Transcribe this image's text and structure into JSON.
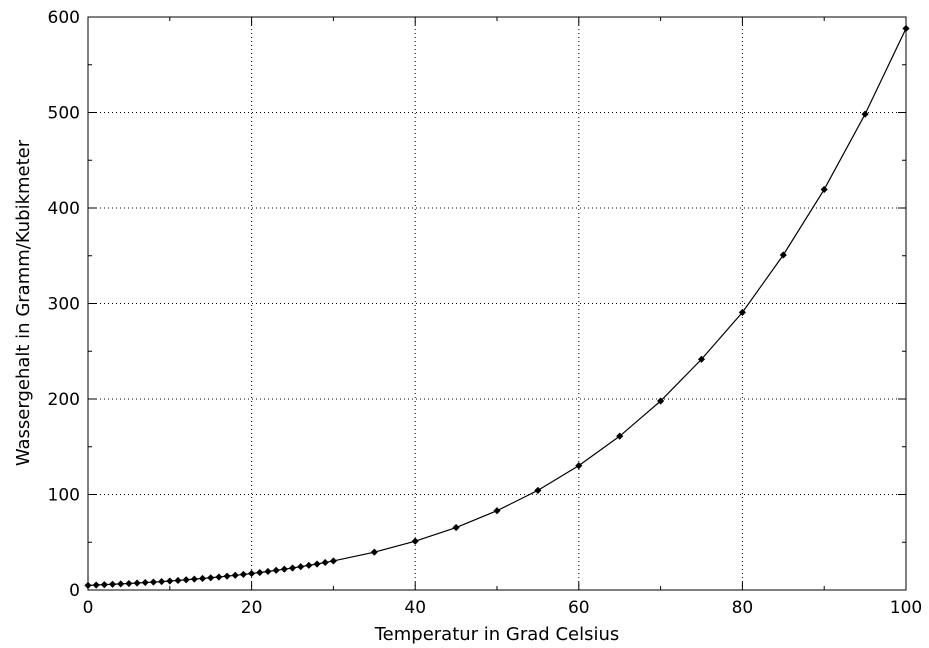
{
  "chart_data": {
    "type": "line",
    "title": "",
    "xlabel": "Temperatur in Grad Celsius",
    "ylabel": "Wassergehalt in Gramm/Kubikmeter",
    "xlim": [
      0,
      100
    ],
    "ylim": [
      0,
      600
    ],
    "xticks": [
      0,
      20,
      40,
      60,
      80,
      100
    ],
    "yticks": [
      0,
      100,
      200,
      300,
      400,
      500,
      600
    ],
    "grid": true,
    "line_color": "#000000",
    "marker": "diamond",
    "series": [
      {
        "x": [
          0,
          1,
          2,
          3,
          4,
          5,
          6,
          7,
          8,
          9,
          10,
          11,
          12,
          13,
          14,
          15,
          16,
          17,
          18,
          19,
          20,
          21,
          22,
          23,
          24,
          25,
          26,
          27,
          28,
          29,
          30,
          35,
          40,
          45,
          50,
          55,
          60,
          65,
          70,
          75,
          80,
          85,
          90,
          95,
          100
        ],
        "y": [
          4.8,
          5.2,
          5.6,
          6.0,
          6.4,
          6.8,
          7.3,
          7.8,
          8.3,
          8.8,
          9.4,
          10.0,
          10.7,
          11.4,
          12.1,
          12.8,
          13.6,
          14.5,
          15.4,
          16.3,
          17.3,
          18.3,
          19.4,
          20.6,
          21.8,
          23.0,
          24.4,
          25.8,
          27.2,
          28.8,
          30.4,
          39.6,
          51.1,
          65.4,
          83.0,
          104.3,
          130.2,
          161.1,
          197.9,
          241.6,
          290.7,
          350.8,
          419.4,
          498.3,
          588.0
        ]
      }
    ]
  }
}
